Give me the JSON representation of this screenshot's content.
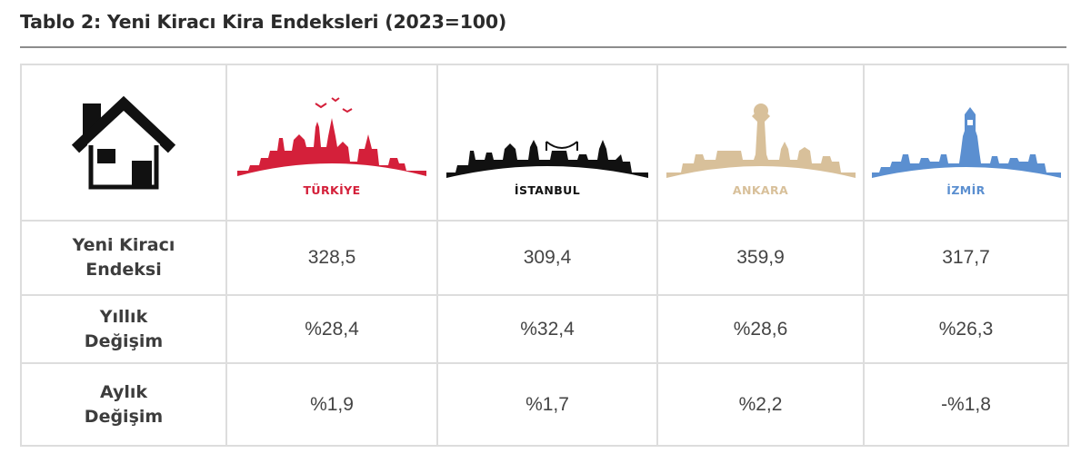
{
  "title": "Tablo 2: Yeni Kiracı Kira Endeksleri (2023=100)",
  "columns": [
    {
      "name": "TÜRKİYE",
      "color": "#d4203a",
      "skyline_icon": "turkiye-skyline-icon"
    },
    {
      "name": "İSTANBUL",
      "color": "#111111",
      "skyline_icon": "istanbul-skyline-icon"
    },
    {
      "name": "ANKARA",
      "color": "#d8c09a",
      "skyline_icon": "ankara-skyline-icon"
    },
    {
      "name": "İZMİR",
      "color": "#5b8fd0",
      "skyline_icon": "izmir-skyline-icon"
    }
  ],
  "corner_icon": "house-icon",
  "rows": [
    {
      "label_line1": "Yeni Kiracı",
      "label_line2": "Endeksi",
      "values": [
        "328,5",
        "309,4",
        "359,9",
        "317,7"
      ]
    },
    {
      "label_line1": "Yıllık",
      "label_line2": "Değişim",
      "values": [
        "%28,4",
        "%32,4",
        "%28,6",
        "%26,3"
      ]
    },
    {
      "label_line1": "Aylık",
      "label_line2": "Değişim",
      "values": [
        "%1,9",
        "%1,7",
        "%2,2",
        "-%1,8"
      ]
    }
  ]
}
